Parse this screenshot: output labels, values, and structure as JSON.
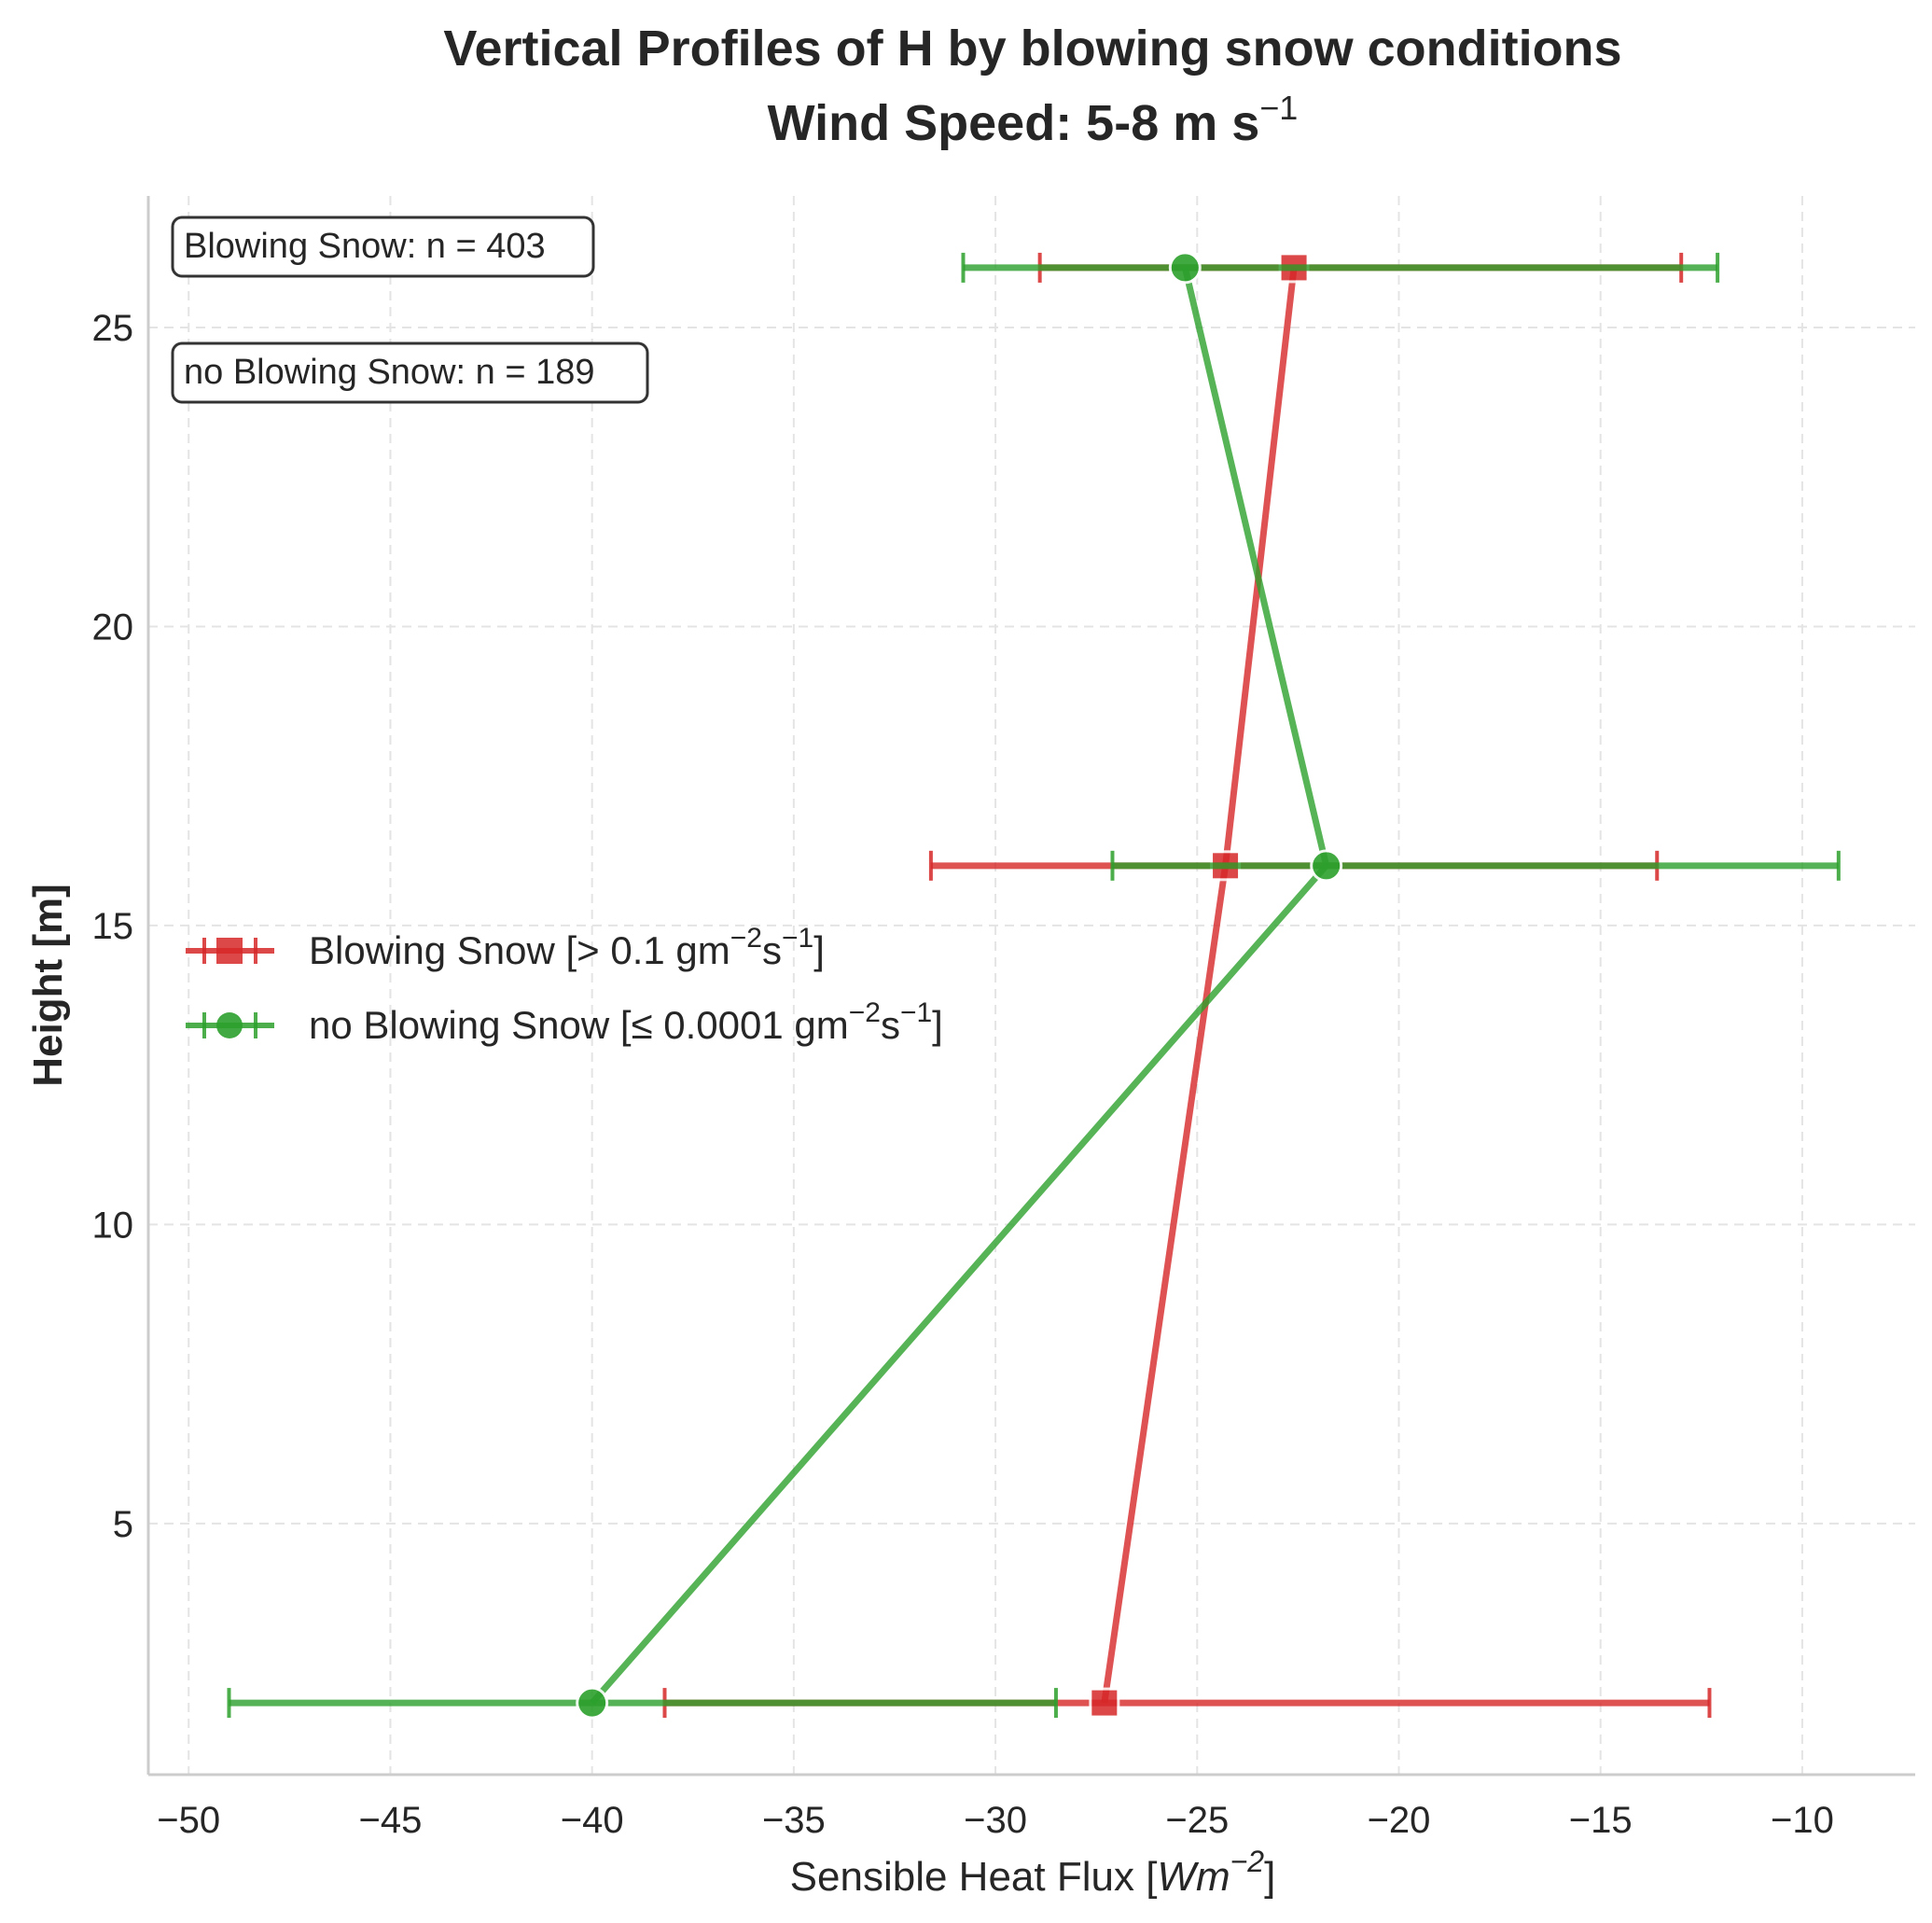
{
  "chart_data": {
    "type": "line",
    "title_line1": "Vertical Profiles of H by blowing snow conditions",
    "title_line2_main": "Wind Speed: 5-8 m s",
    "title_line2_sup": "−1",
    "xlabel_main": "Sensible Heat Flux [",
    "xlabel_italic": "Wm",
    "xlabel_sup": "−2",
    "xlabel_close": "]",
    "ylabel": "Height [m]",
    "xlim": [
      -51,
      -7.2
    ],
    "ylim": [
      0.8,
      27.2
    ],
    "xticks": [
      -50,
      -45,
      -40,
      -35,
      -30,
      -25,
      -20,
      -15,
      -10
    ],
    "xtick_labels": [
      "−50",
      "−45",
      "−40",
      "−35",
      "−30",
      "−25",
      "−20",
      "−15",
      "−10"
    ],
    "yticks": [
      5,
      10,
      15,
      20,
      25
    ],
    "ytick_labels": [
      "5",
      "10",
      "15",
      "20",
      "25"
    ],
    "grid": true,
    "legend_position": "center-left",
    "series": [
      {
        "name_main": "Blowing Snow [> 0.1 gm",
        "name_sup1": "−2",
        "name_mid": "s",
        "name_sup2": "−1",
        "name_close": "]",
        "color": "#d62728",
        "marker": "square",
        "heights": [
          2,
          16,
          26
        ],
        "values": [
          -27.3,
          -24.3,
          -22.6
        ],
        "err_low": [
          -38.2,
          -31.6,
          -28.9
        ],
        "err_high": [
          -12.3,
          -13.6,
          -13.0
        ]
      },
      {
        "name_main": "no Blowing Snow [≤ 0.0001 gm",
        "name_sup1": "−2",
        "name_mid": "s",
        "name_sup2": "−1",
        "name_close": "]",
        "color": "#2ca02c",
        "marker": "circle",
        "heights": [
          2,
          16,
          26
        ],
        "values": [
          -40.0,
          -21.8,
          -25.3
        ],
        "err_low": [
          -49.0,
          -27.1,
          -30.8
        ],
        "err_high": [
          -28.5,
          -9.1,
          -12.1
        ]
      }
    ],
    "annotations": [
      "Blowing Snow: n = 403",
      "no Blowing Snow: n = 189"
    ]
  }
}
